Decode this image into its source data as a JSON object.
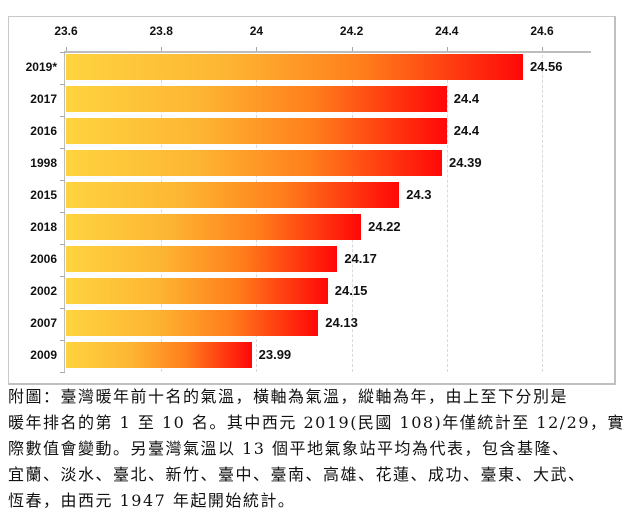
{
  "chart_data": {
    "type": "bar",
    "orientation": "horizontal",
    "title": "",
    "xlabel": "",
    "ylabel": "",
    "xlim": [
      23.6,
      24.6
    ],
    "x_ticks": [
      "23.6",
      "23.8",
      "24",
      "24.2",
      "24.4",
      "24.6"
    ],
    "x_axis_position": "top",
    "grid": true,
    "legend": null,
    "categories": [
      "2019*",
      "2017",
      "2016",
      "1998",
      "2015",
      "2018",
      "2006",
      "2002",
      "2007",
      "2009"
    ],
    "values": [
      24.56,
      24.4,
      24.4,
      24.39,
      24.3,
      24.22,
      24.17,
      24.15,
      24.13,
      23.99
    ],
    "value_labels": [
      "24.56",
      "24.4",
      "24.4",
      "24.39",
      "24.3",
      "24.22",
      "24.17",
      "24.15",
      "24.13",
      "23.99"
    ],
    "bar_gradient": [
      "#ffd23a",
      "#ff0000"
    ]
  },
  "caption": {
    "lines": [
      "附圖：臺灣暖年前十名的氣溫，橫軸為氣溫，縱軸為年，由上至下分別是",
      "暖年排名的第 1 至 10 名。其中西元 2019(民國 108)年僅統計至 12/29，實",
      "際數值會變動。另臺灣氣溫以  13  個平地氣象站平均為代表，包含基隆、",
      "宜蘭、淡水、臺北、新竹、臺中、臺南、高雄、花蓮、成功、臺東、大武、",
      "恆春，由西元 1947 年起開始統計。"
    ]
  }
}
